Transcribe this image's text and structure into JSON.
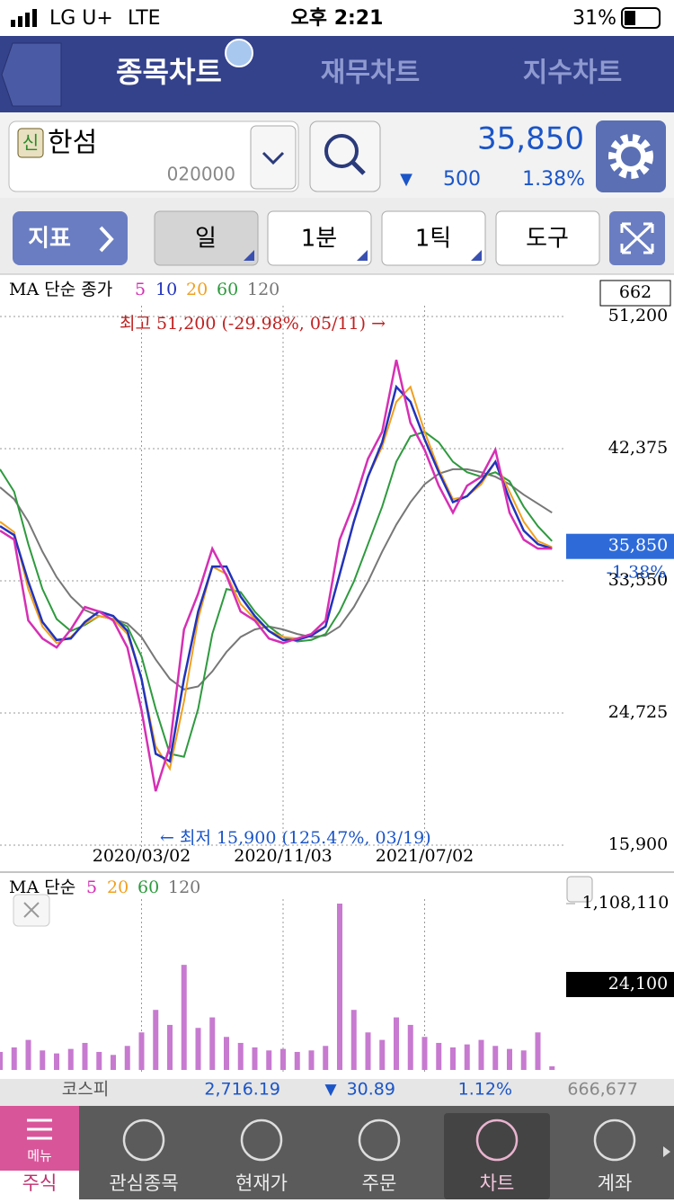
{
  "status_bar": {
    "carrier": "LG U+",
    "network": "LTE",
    "time": "오후 2:21",
    "battery": "31%"
  },
  "tabs": [
    "종목차트",
    "재무차트",
    "지수차트"
  ],
  "stock": {
    "badge": "신",
    "name": "한섬",
    "code": "020000",
    "price": "35,850",
    "change_sign": "▼",
    "change": "500",
    "change_rate": "1.38%"
  },
  "toolbar": [
    "지표",
    "일",
    "1분",
    "1틱",
    "도구"
  ],
  "price_chart": {
    "type": "line",
    "legend_title": "MA 단순 종가",
    "count_label": "662",
    "high_note": "최고 51,200 (-29.98%, 05/11) →",
    "low_note": "← 최저 15,900 (125.47%, 03/19)",
    "categories": [
      null,
      null,
      null,
      null,
      null,
      null,
      null,
      null,
      null,
      null,
      "2020/03/02",
      null,
      null,
      null,
      null,
      null,
      null,
      null,
      null,
      null,
      "2020/11/03",
      null,
      null,
      null,
      null,
      null,
      null,
      null,
      null,
      null,
      "2021/07/02",
      null,
      null,
      null,
      null,
      null,
      null,
      null,
      null,
      null
    ],
    "series": [
      {
        "name": "5",
        "color": "#d62fb4",
        "values": [
          36900,
          36300,
          30900,
          29700,
          29100,
          30300,
          31800,
          31500,
          30900,
          29100,
          24900,
          19500,
          22500,
          30300,
          32700,
          35700,
          33900,
          31500,
          30900,
          29700,
          29400,
          29700,
          30000,
          30900,
          36300,
          38700,
          41700,
          43500,
          48300,
          44100,
          42300,
          39900,
          38100,
          39900,
          40500,
          42300,
          38100,
          36300,
          35700,
          35700
        ]
      },
      {
        "name": "10",
        "color": "#2233bb",
        "values": [
          37200,
          36600,
          33500,
          30800,
          29600,
          29700,
          30800,
          31500,
          31200,
          30200,
          27000,
          22000,
          21500,
          27000,
          31500,
          34500,
          34500,
          32500,
          31200,
          30200,
          29600,
          29600,
          29900,
          30500,
          34000,
          37500,
          40500,
          42800,
          46500,
          45500,
          43000,
          40800,
          38800,
          39200,
          40200,
          41500,
          39000,
          36900,
          36000,
          35700
        ]
      },
      {
        "name": "20",
        "color": "#f0a020",
        "values": [
          37500,
          36800,
          33000,
          30500,
          29400,
          29800,
          30700,
          31200,
          31000,
          30000,
          27000,
          22500,
          21000,
          25500,
          31000,
          34500,
          34000,
          32000,
          31000,
          30200,
          29800,
          29700,
          30000,
          30500,
          34000,
          37500,
          40500,
          42500,
          45500,
          46500,
          43500,
          41000,
          39000,
          39200,
          40000,
          41500,
          39500,
          37500,
          36200,
          35800
        ]
      },
      {
        "name": "60",
        "color": "#2e9a3e",
        "values": [
          41000,
          39500,
          36000,
          33000,
          31000,
          30200,
          30600,
          31200,
          31000,
          30500,
          28500,
          25000,
          22000,
          21800,
          25000,
          30000,
          33000,
          32800,
          31500,
          30500,
          29800,
          29500,
          29600,
          30000,
          31500,
          33500,
          36000,
          38500,
          41500,
          43200,
          43500,
          42800,
          41500,
          40800,
          40500,
          40800,
          40200,
          38500,
          37200,
          36200
        ]
      },
      {
        "name": "120",
        "color": "#777777",
        "values": [
          39800,
          39000,
          37500,
          35500,
          33800,
          32500,
          31600,
          31200,
          31000,
          30700,
          29800,
          28300,
          27000,
          26300,
          26500,
          27500,
          28800,
          29800,
          30300,
          30500,
          30300,
          30000,
          29800,
          29900,
          30500,
          31800,
          33500,
          35500,
          37300,
          38800,
          40000,
          40700,
          41000,
          41000,
          40800,
          40500,
          40000,
          39300,
          38700,
          38100
        ]
      }
    ],
    "ylim": [
      15900,
      51200
    ],
    "yticks": [
      {
        "value": 51200,
        "label": "51,200"
      },
      {
        "value": 42375,
        "label": "42,375"
      },
      {
        "value": 33550,
        "label": "33,550"
      },
      {
        "value": 24725,
        "label": "24,725"
      },
      {
        "value": 15900,
        "label": "15,900"
      }
    ],
    "grid": true,
    "current": {
      "value": 35850,
      "label": "35,850"
    },
    "current_change": "-1.38%"
  },
  "volume_chart": {
    "type": "bar",
    "legend_title": "MA 단순",
    "legend": [
      "5",
      "20",
      "60",
      "120"
    ],
    "legend_colors": [
      "#d62fb4",
      "#f0a020",
      "#2e9a3e",
      "#777777"
    ],
    "color": "#c77ad0",
    "values": [
      120000,
      150000,
      200000,
      130000,
      110000,
      140000,
      180000,
      120000,
      100000,
      160000,
      250000,
      400000,
      300000,
      700000,
      280000,
      350000,
      220000,
      180000,
      150000,
      130000,
      140000,
      120000,
      130000,
      160000,
      1108110,
      400000,
      250000,
      200000,
      350000,
      300000,
      220000,
      180000,
      150000,
      170000,
      200000,
      160000,
      140000,
      130000,
      250000,
      24100
    ],
    "ylim": [
      0,
      1108110
    ],
    "yticks": [
      {
        "value": 1108110,
        "label": "1,108,110"
      }
    ],
    "current": {
      "value": 24100,
      "label": "24,100"
    }
  },
  "index_bar": {
    "name": "코스피",
    "value": "2,716.19",
    "sign": "▼",
    "change": "30.89",
    "rate": "1.12%",
    "volume": "666,677"
  },
  "nav": {
    "menu": "메뉴",
    "items": [
      "주식",
      "관심종목",
      "현재가",
      "주문",
      "차트",
      "계좌"
    ]
  }
}
